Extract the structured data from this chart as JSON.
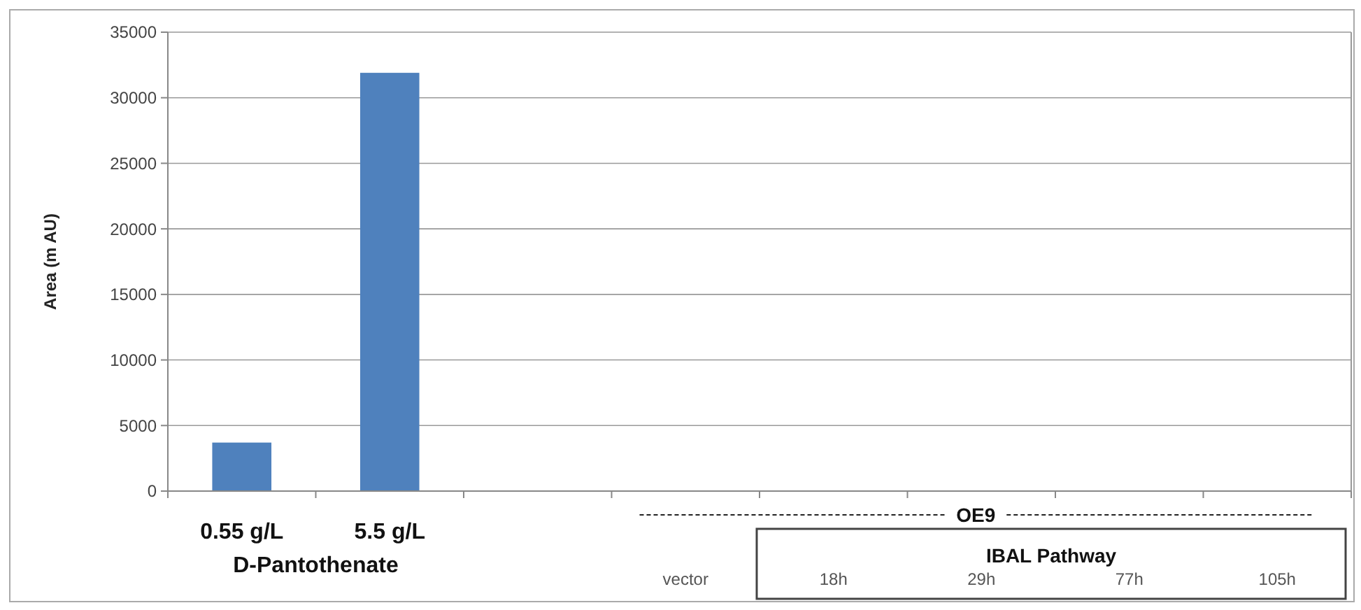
{
  "chart_data": {
    "type": "bar",
    "ylabel": "Area   (m AU)",
    "categories": [
      "0.55 g/L",
      "5.5 g/L",
      null,
      "vector",
      "18h",
      "29h",
      "77h",
      "105h"
    ],
    "values": [
      3700,
      31900,
      0,
      0,
      0,
      0,
      0,
      0
    ],
    "color": "#4f81bd",
    "ylim": [
      0,
      35000
    ],
    "yticks": [
      0,
      5000,
      10000,
      15000,
      20000,
      25000,
      30000,
      35000
    ],
    "grid": "y",
    "annotations": [
      "D-Pantothenate",
      "OE9",
      "IBAL Pathway"
    ]
  }
}
